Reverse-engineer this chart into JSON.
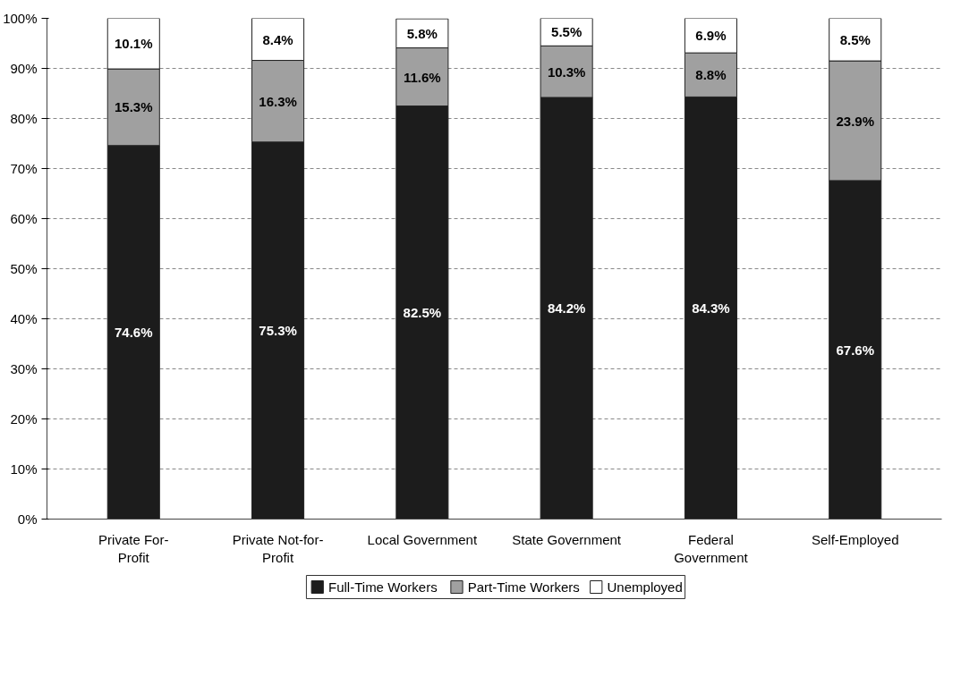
{
  "chart_data": {
    "type": "bar",
    "stacked": true,
    "categories": [
      "Private For-Profit",
      "Private Not-for-Profit",
      "Local Government",
      "State Government",
      "Federal Government",
      "Self-Employed"
    ],
    "series": [
      {
        "name": "Full-Time Workers",
        "color": "#1c1c1c",
        "values": [
          74.6,
          75.3,
          82.5,
          84.2,
          84.3,
          67.6
        ],
        "value_labels": [
          "74.6%",
          "75.3%",
          "82.5%",
          "84.2%",
          "84.3%",
          "67.6%"
        ]
      },
      {
        "name": "Part-Time Workers",
        "color": "#a0a0a0",
        "values": [
          15.3,
          16.3,
          11.6,
          10.3,
          8.8,
          23.9
        ],
        "value_labels": [
          "15.3%",
          "16.3%",
          "11.6%",
          "10.3%",
          "8.8%",
          "23.9%"
        ]
      },
      {
        "name": "Unemployed",
        "color": "#ffffff",
        "values": [
          10.1,
          8.4,
          5.8,
          5.5,
          6.9,
          8.5
        ],
        "value_labels": [
          "10.1%",
          "8.4%",
          "5.8%",
          "5.5%",
          "6.9%",
          "8.5%"
        ]
      }
    ],
    "ylim": [
      0,
      100
    ],
    "yticks": [
      {
        "value": 0,
        "label": "0%"
      },
      {
        "value": 10,
        "label": "10%"
      },
      {
        "value": 20,
        "label": "20%"
      },
      {
        "value": 30,
        "label": "30%"
      },
      {
        "value": 40,
        "label": "40%"
      },
      {
        "value": 50,
        "label": "50%"
      },
      {
        "value": 60,
        "label": "60%"
      },
      {
        "value": 70,
        "label": "70%"
      },
      {
        "value": 80,
        "label": "80%"
      },
      {
        "value": 90,
        "label": "90%"
      },
      {
        "value": 100,
        "label": "100%"
      }
    ],
    "grid": "y",
    "legend": "bottom"
  }
}
